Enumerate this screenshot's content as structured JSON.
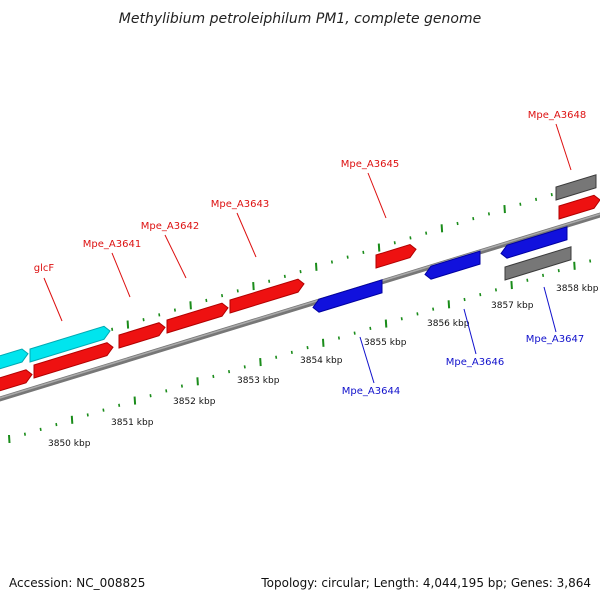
{
  "title": "Methylibium petroleiphilum PM1, complete genome",
  "footer": {
    "accession": "Accession: NC_008825",
    "stats": "Topology: circular; Length: 4,044,195 bp; Genes: 3,864"
  },
  "colors": {
    "forward_gene": "#ee1111",
    "reverse_gene": "#1111dd",
    "rna_gene": "#00e5ee",
    "other_gene": "#777777",
    "tick": "#1a8c1a",
    "backbone": "#888888",
    "forward_label": "#dd1111",
    "reverse_label": "#1111cc"
  },
  "ticks": [
    {
      "label": "3850 kbp"
    },
    {
      "label": "3851 kbp"
    },
    {
      "label": "3852 kbp"
    },
    {
      "label": "3853 kbp"
    },
    {
      "label": "3854 kbp"
    },
    {
      "label": "3855 kbp"
    },
    {
      "label": "3856 kbp"
    },
    {
      "label": "3857 kbp"
    },
    {
      "label": "3858 kbp"
    }
  ],
  "genes": [
    {
      "name": "",
      "strand": "forward",
      "kind": "cds"
    },
    {
      "name": "glcF",
      "strand": "forward",
      "kind": "rna"
    },
    {
      "name": "",
      "strand": "forward",
      "kind": "cds"
    },
    {
      "name": "",
      "strand": "forward",
      "kind": "cds"
    },
    {
      "name": "Mpe_A3641",
      "strand": "forward",
      "kind": "cds"
    },
    {
      "name": "Mpe_A3642",
      "strand": "forward",
      "kind": "cds"
    },
    {
      "name": "Mpe_A3643",
      "strand": "forward",
      "kind": "cds"
    },
    {
      "name": "Mpe_A3644",
      "strand": "reverse",
      "kind": "cds"
    },
    {
      "name": "Mpe_A3645",
      "strand": "forward",
      "kind": "cds"
    },
    {
      "name": "Mpe_A3646",
      "strand": "reverse",
      "kind": "cds"
    },
    {
      "name": "Mpe_A3647",
      "strand": "reverse",
      "kind": "cds"
    },
    {
      "name": "",
      "strand": "other",
      "kind": "pseudo"
    },
    {
      "name": "Mpe_A3648",
      "strand": "other",
      "kind": "pseudo"
    },
    {
      "name": "",
      "strand": "forward",
      "kind": "cds"
    }
  ]
}
